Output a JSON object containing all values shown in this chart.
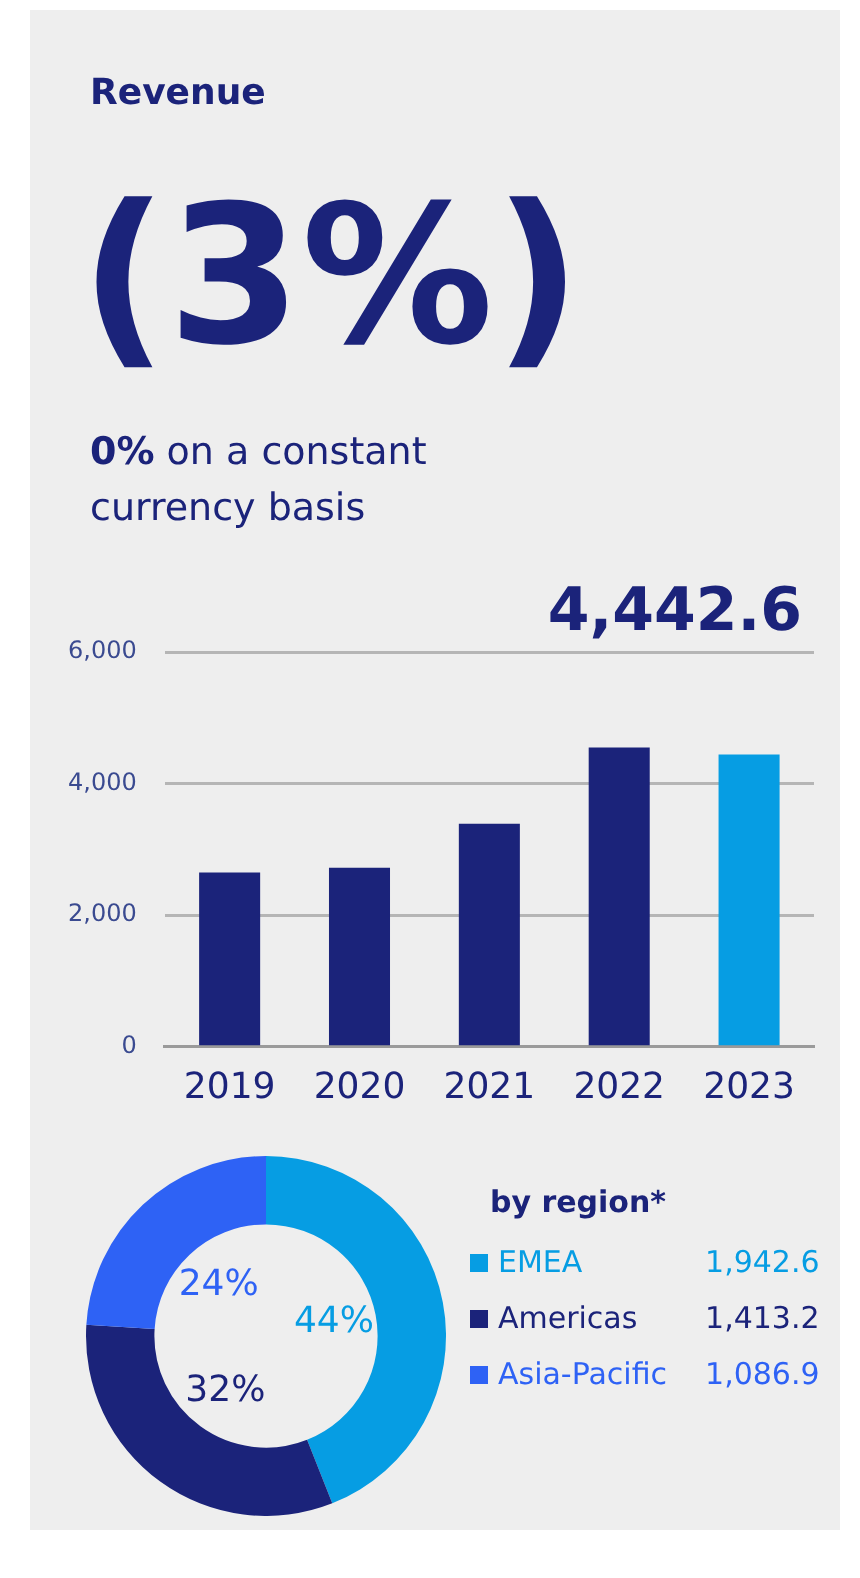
{
  "chart_data": [
    {
      "type": "bar",
      "title": "Revenue",
      "subtitle": "(3%)",
      "annotations": [
        "0% on a constant currency basis"
      ],
      "categories": [
        "2019",
        "2020",
        "2021",
        "2022",
        "2023"
      ],
      "values": [
        2650,
        2720,
        3390,
        4550,
        4442.6
      ],
      "colors": [
        "#1b237a",
        "#1b237a",
        "#1b237a",
        "#1b237a",
        "#069de3"
      ],
      "value_labels": [
        null,
        null,
        null,
        null,
        "4,442.6"
      ],
      "ylim": [
        0,
        6000
      ],
      "yticks": [
        {
          "value": 0,
          "label": "0"
        },
        {
          "value": 2000,
          "label": "2,000"
        },
        {
          "value": 4000,
          "label": "4,000"
        },
        {
          "value": 6000,
          "label": "6,000"
        }
      ],
      "grid": "y"
    },
    {
      "type": "donut",
      "title": "by region*",
      "categories": [
        "EMEA",
        "Americas",
        "Asia-Pacific"
      ],
      "values": [
        44,
        32,
        24
      ],
      "colors": [
        "#069de3",
        "#1b237a",
        "#2e62f5"
      ],
      "value_labels": [
        "44%",
        "32%",
        "24%"
      ],
      "annotations": [
        "1,942.6",
        "1,413.2",
        "1,086.9"
      ],
      "legend": "right"
    }
  ]
}
